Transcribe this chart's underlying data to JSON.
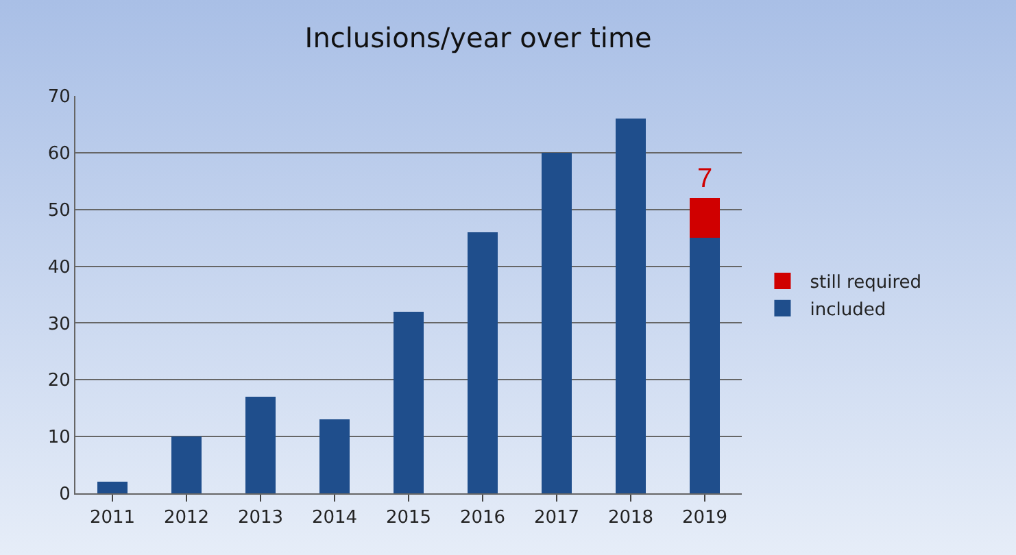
{
  "chart_data": {
    "type": "bar",
    "title": "Inclusions/year over time",
    "categories": [
      "2011",
      "2012",
      "2013",
      "2014",
      "2015",
      "2016",
      "2017",
      "2018",
      "2019"
    ],
    "stacked": true,
    "series": [
      {
        "name": "included",
        "color": "#1f4e8c",
        "values": [
          2,
          10,
          17,
          13,
          32,
          46,
          60,
          66,
          45
        ]
      },
      {
        "name": "still required",
        "color": "#d00000",
        "values": [
          null,
          null,
          null,
          null,
          null,
          null,
          null,
          null,
          7
        ],
        "value_labels": [
          null,
          null,
          null,
          null,
          null,
          null,
          null,
          null,
          "7"
        ]
      }
    ],
    "ylim": [
      0,
      70
    ],
    "yticks": [
      0,
      10,
      20,
      30,
      40,
      50,
      60,
      70
    ],
    "grid": "y",
    "legend": "right"
  }
}
